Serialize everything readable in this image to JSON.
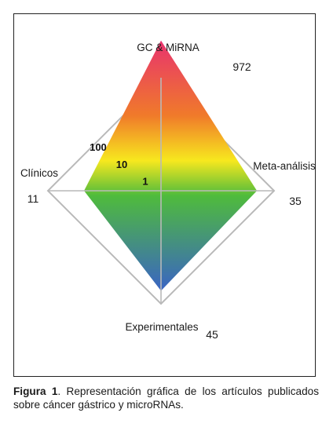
{
  "chart_data": {
    "type": "radar",
    "scale": "log",
    "rings": [
      1,
      10,
      100
    ],
    "ring_labels": [
      "1",
      "10",
      "100"
    ],
    "axes": [
      {
        "label": "GC & MiRNA",
        "value": 972
      },
      {
        "label": "Meta-análisis",
        "value": 35
      },
      {
        "label": "Experimentales",
        "value": 45
      },
      {
        "label": "Clínicos",
        "value": 11
      }
    ],
    "fill_gradient": [
      "#e8336e",
      "#f07a2a",
      "#f7e81e",
      "#4fbb3c",
      "#3a64c4"
    ],
    "grid_color": "#b9b9b9"
  },
  "caption": {
    "figure_label": "Figura 1",
    "text": ". Representación gráfica de los artículos publicados sobre cáncer gástrico y microRNAs."
  }
}
